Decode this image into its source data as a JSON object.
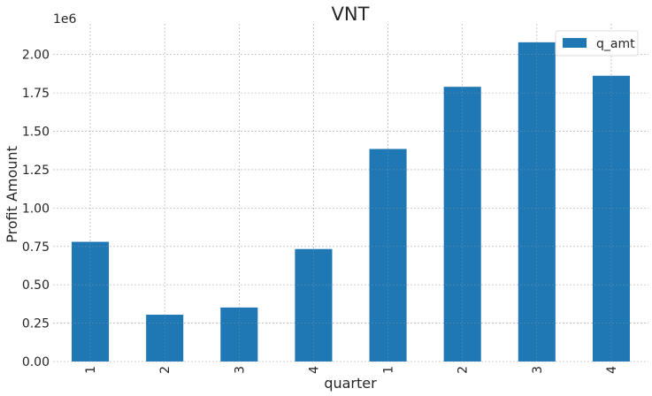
{
  "chart_data": {
    "type": "bar",
    "title": "VNT",
    "xlabel": "quarter",
    "ylabel": "Profit Amount",
    "y_offset_label": "1e6",
    "categories": [
      "1",
      "2",
      "3",
      "4",
      "1",
      "2",
      "3",
      "4"
    ],
    "series": [
      {
        "name": "q_amt",
        "values": [
          780000,
          305000,
          352000,
          733000,
          1385000,
          1790000,
          2080000,
          1862000
        ],
        "color": "#1f77b4"
      }
    ],
    "ylim": [
      0,
      2200000
    ],
    "yticks": [
      0,
      250000,
      500000,
      750000,
      1000000,
      1250000,
      1500000,
      1750000,
      2000000
    ],
    "ytick_labels": [
      "0.00",
      "0.25",
      "0.50",
      "0.75",
      "1.00",
      "1.25",
      "1.50",
      "1.75",
      "2.00"
    ],
    "grid": true,
    "legend_position": "top-right"
  }
}
